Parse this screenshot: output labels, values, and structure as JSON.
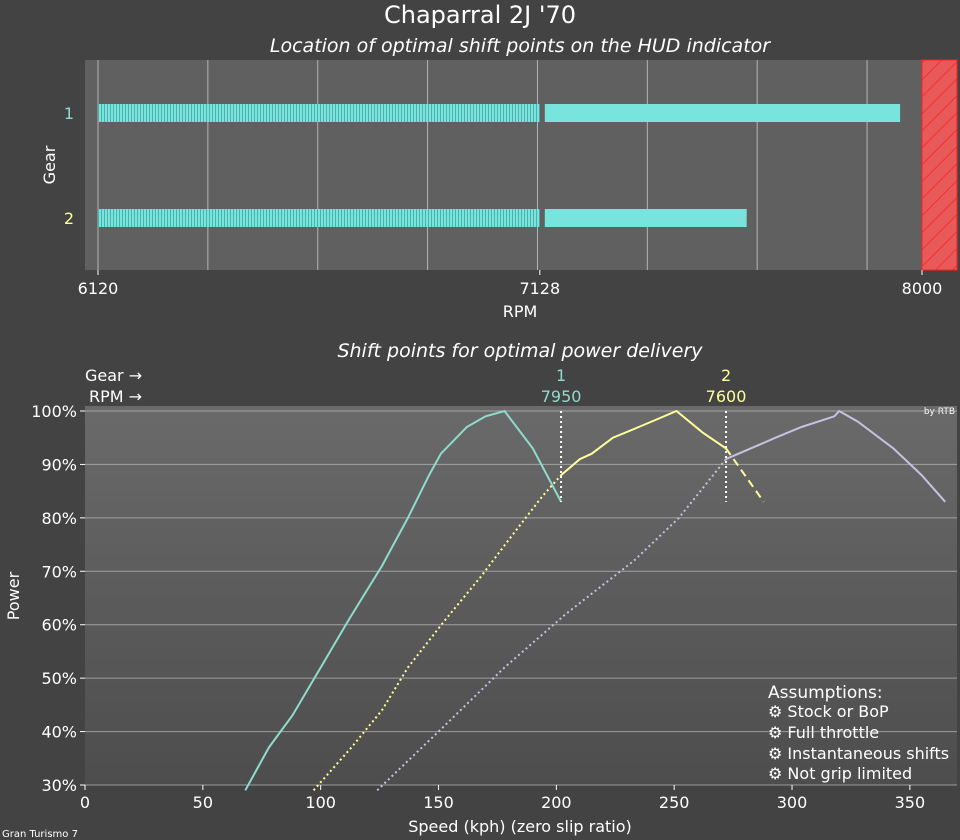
{
  "title": "Chaparral 2J '70",
  "footer": "Gran Turismo 7",
  "credit": "by RTB",
  "assumptions": {
    "heading": "Assumptions:",
    "items": [
      "⚙ Stock or BoP",
      "⚙ Full throttle",
      "⚙ Instantaneous shifts",
      "⚙ Not grip limited"
    ]
  },
  "colors": {
    "gear1": "#8fdccc",
    "gear2": "#ffff99",
    "gear3": "#c8c0e0",
    "hud_bar": "#79e3dd",
    "redline": "#e84848",
    "background": "#434343",
    "plot_bg": "#606060"
  },
  "chart_data": [
    {
      "type": "bar",
      "orientation": "horizontal",
      "title": "Location of optimal shift points on the HUD indicator",
      "xlabel": "RPM",
      "ylabel": "Gear",
      "xlim": [
        6000,
        8000
      ],
      "xticks": [
        "6120",
        "7128",
        "8000"
      ],
      "grid": true,
      "redline_start": 8000,
      "gears": [
        {
          "label": "1",
          "start": 6120,
          "hatched_end": 7128,
          "end": 7950
        },
        {
          "label": "2",
          "start": 6120,
          "hatched_end": 7128,
          "end": 7600
        }
      ]
    },
    {
      "type": "line",
      "title": "Shift points for optimal power delivery",
      "xlabel": "Speed (kph) (zero slip ratio)",
      "ylabel": "Power",
      "xlim": [
        0,
        370
      ],
      "ylim": [
        30,
        100
      ],
      "xticks": [
        0,
        50,
        100,
        150,
        200,
        250,
        300,
        350
      ],
      "yticks": [
        "30%",
        "40%",
        "50%",
        "60%",
        "70%",
        "80%",
        "90%",
        "100%"
      ],
      "grid": true,
      "shift_header": {
        "gear_label": "Gear →",
        "rpm_label": "RPM →"
      },
      "shifts": [
        {
          "gear": "1",
          "rpm": "7950",
          "speed": 202
        },
        {
          "gear": "2",
          "rpm": "7600",
          "speed": 272
        }
      ],
      "series": [
        {
          "gear": 1,
          "points": [
            [
              68,
              29
            ],
            [
              78,
              37
            ],
            [
              88,
              43
            ],
            [
              100,
              52
            ],
            [
              112,
              61
            ],
            [
              126,
              71
            ],
            [
              137,
              80
            ],
            [
              146,
              88
            ],
            [
              151,
              92
            ],
            [
              162,
              97
            ],
            [
              170,
              99
            ],
            [
              178,
              100
            ],
            [
              190,
              93
            ],
            [
              202,
              83
            ]
          ]
        },
        {
          "gear": 2,
          "dotted_until": 202,
          "dashed_from": 272,
          "points": [
            [
              97,
              29
            ],
            [
              113,
              37
            ],
            [
              126,
              44
            ],
            [
              137,
              52
            ],
            [
              153,
              61
            ],
            [
              168,
              69
            ],
            [
              180,
              76
            ],
            [
              194,
              84
            ],
            [
              202,
              88
            ],
            [
              210,
              91
            ],
            [
              215,
              92
            ],
            [
              224,
              95
            ],
            [
              235,
              97
            ],
            [
              243,
              98.5
            ],
            [
              251,
              100
            ],
            [
              262,
              96
            ],
            [
              272,
              93
            ],
            [
              288,
              83
            ]
          ]
        },
        {
          "gear": 3,
          "dotted_until": 272,
          "points": [
            [
              124,
              29
            ],
            [
              150,
              40
            ],
            [
              178,
              52
            ],
            [
              204,
              62
            ],
            [
              233,
              72
            ],
            [
              252,
              80
            ],
            [
              272,
              91
            ],
            [
              293,
              95
            ],
            [
              304,
              97
            ],
            [
              318,
              99
            ],
            [
              320,
              100
            ],
            [
              328,
              98
            ],
            [
              343,
              93
            ],
            [
              355,
              88
            ],
            [
              365,
              83
            ]
          ]
        }
      ]
    }
  ]
}
